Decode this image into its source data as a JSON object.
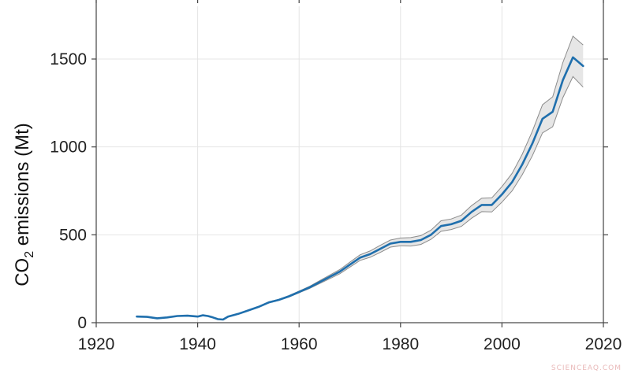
{
  "chart_data": {
    "type": "line",
    "xlabel": "",
    "ylabel_main": "CO",
    "ylabel_sub": "2",
    "ylabel_rest": " emissions  (Mt)",
    "xlim": [
      1920,
      2020
    ],
    "ylim": [
      0,
      1800
    ],
    "xticks": [
      1920,
      1940,
      1960,
      1980,
      2000,
      2020
    ],
    "yticks": [
      0,
      500,
      1000,
      1500
    ],
    "grid": true,
    "colors": {
      "line": "#1f6fad",
      "band_fill": "#e6e6e6",
      "band_edge": "#8c8c8c",
      "grid": "#e4e4e4",
      "axis": "#444444"
    },
    "series": [
      {
        "x": [
          1928,
          1930,
          1932,
          1934,
          1936,
          1938,
          1940,
          1941,
          1942,
          1943,
          1944,
          1945,
          1946,
          1948,
          1950,
          1952,
          1954,
          1956,
          1958,
          1960,
          1962,
          1964,
          1966,
          1968,
          1970,
          1972,
          1974,
          1976,
          1978,
          1980,
          1982,
          1984,
          1986,
          1988,
          1990,
          1992,
          1994,
          1996,
          1998,
          2000,
          2002,
          2004,
          2006,
          2008,
          2010,
          2012,
          2014,
          2016
        ],
        "y": [
          35,
          33,
          25,
          30,
          38,
          40,
          35,
          42,
          38,
          30,
          20,
          18,
          35,
          50,
          70,
          90,
          115,
          130,
          150,
          175,
          200,
          230,
          260,
          290,
          330,
          370,
          390,
          420,
          450,
          460,
          460,
          470,
          500,
          550,
          560,
          580,
          630,
          670,
          670,
          730,
          800,
          900,
          1020,
          1160,
          1200,
          1380,
          1510,
          1460
        ],
        "lower": [
          35,
          33,
          25,
          30,
          38,
          40,
          35,
          42,
          38,
          30,
          20,
          18,
          35,
          50,
          68,
          88,
          112,
          127,
          146,
          170,
          194,
          222,
          250,
          278,
          316,
          354,
          372,
          400,
          430,
          438,
          436,
          445,
          474,
          520,
          530,
          548,
          594,
          632,
          630,
          686,
          750,
          842,
          950,
          1080,
          1115,
          1280,
          1400,
          1340
        ],
        "upper": [
          35,
          33,
          25,
          30,
          38,
          40,
          35,
          42,
          38,
          30,
          20,
          18,
          35,
          50,
          72,
          92,
          118,
          133,
          154,
          180,
          206,
          238,
          270,
          302,
          344,
          386,
          408,
          440,
          470,
          482,
          484,
          495,
          526,
          580,
          590,
          612,
          666,
          708,
          710,
          774,
          850,
          958,
          1090,
          1240,
          1285,
          1480,
          1630,
          1580
        ]
      }
    ]
  },
  "watermark": "SCIENCEAQ.COM"
}
